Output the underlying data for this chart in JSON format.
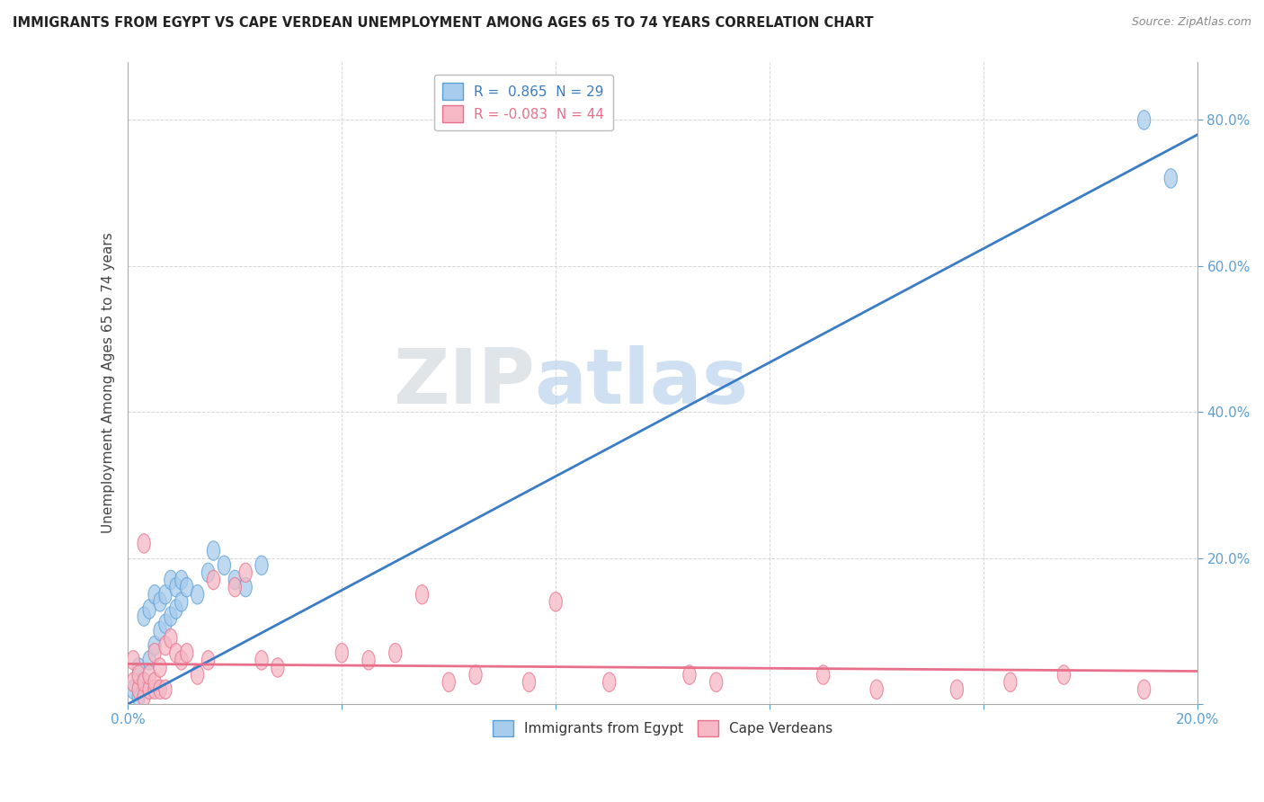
{
  "title": "IMMIGRANTS FROM EGYPT VS CAPE VERDEAN UNEMPLOYMENT AMONG AGES 65 TO 74 YEARS CORRELATION CHART",
  "source": "Source: ZipAtlas.com",
  "ylabel": "Unemployment Among Ages 65 to 74 years",
  "xlim": [
    0.0,
    0.2
  ],
  "ylim": [
    0.0,
    0.88
  ],
  "legend_blue_label": "R =  0.865  N = 29",
  "legend_pink_label": "R = -0.083  N = 44",
  "legend_blue_series": "Immigrants from Egypt",
  "legend_pink_series": "Cape Verdeans",
  "blue_color": "#A8CCEC",
  "pink_color": "#F5B8C4",
  "blue_edge_color": "#5A9FD4",
  "pink_edge_color": "#E8708A",
  "blue_line_color": "#3A7CC5",
  "pink_line_color": "#E8708A",
  "watermark_zip": "ZIP",
  "watermark_atlas": "atlas",
  "background_color": "#FFFFFF",
  "grid_color": "#CCCCCC",
  "title_color": "#222222",
  "source_color": "#888888",
  "tick_color": "#5A9FD4",
  "ylabel_color": "#444444",
  "blue_line_intercept": 0.0,
  "blue_line_slope": 3.9,
  "pink_line_intercept": 0.055,
  "pink_line_slope": -0.05,
  "blue_x": [
    0.001,
    0.002,
    0.002,
    0.003,
    0.003,
    0.004,
    0.004,
    0.005,
    0.005,
    0.006,
    0.006,
    0.007,
    0.007,
    0.008,
    0.008,
    0.009,
    0.009,
    0.01,
    0.01,
    0.011,
    0.013,
    0.015,
    0.016,
    0.018,
    0.02,
    0.022,
    0.025,
    0.19,
    0.195
  ],
  "blue_y": [
    0.02,
    0.01,
    0.05,
    0.03,
    0.12,
    0.06,
    0.13,
    0.08,
    0.15,
    0.1,
    0.14,
    0.11,
    0.15,
    0.12,
    0.17,
    0.13,
    0.16,
    0.14,
    0.17,
    0.16,
    0.15,
    0.18,
    0.21,
    0.19,
    0.17,
    0.16,
    0.19,
    0.8,
    0.72
  ],
  "pink_x": [
    0.001,
    0.001,
    0.002,
    0.002,
    0.003,
    0.003,
    0.003,
    0.004,
    0.004,
    0.005,
    0.005,
    0.005,
    0.006,
    0.006,
    0.007,
    0.007,
    0.008,
    0.009,
    0.01,
    0.011,
    0.013,
    0.015,
    0.016,
    0.02,
    0.022,
    0.025,
    0.028,
    0.04,
    0.045,
    0.05,
    0.055,
    0.06,
    0.065,
    0.075,
    0.08,
    0.09,
    0.105,
    0.11,
    0.13,
    0.14,
    0.155,
    0.165,
    0.175,
    0.19
  ],
  "pink_y": [
    0.03,
    0.06,
    0.02,
    0.04,
    0.01,
    0.03,
    0.22,
    0.02,
    0.04,
    0.02,
    0.03,
    0.07,
    0.02,
    0.05,
    0.02,
    0.08,
    0.09,
    0.07,
    0.06,
    0.07,
    0.04,
    0.06,
    0.17,
    0.16,
    0.18,
    0.06,
    0.05,
    0.07,
    0.06,
    0.07,
    0.15,
    0.03,
    0.04,
    0.03,
    0.14,
    0.03,
    0.04,
    0.03,
    0.04,
    0.02,
    0.02,
    0.03,
    0.04,
    0.02
  ]
}
